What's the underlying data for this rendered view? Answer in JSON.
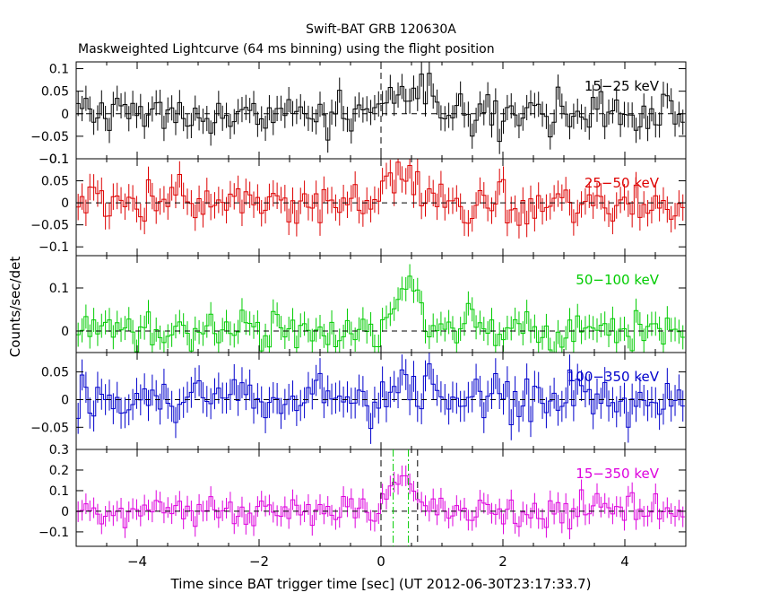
{
  "title": "Swift-BAT GRB 120630A",
  "subtitle": "Maskweighted Lightcurve (64 ms binning) using the flight position",
  "xlabel": "Time since BAT trigger time [sec] (UT 2012-06-30T23:17:33.7)",
  "ylabel": "Counts/sec/det",
  "colors": {
    "axis": "#000000",
    "dashed": "#000000",
    "green_marker": "#00cc00"
  },
  "chart_data": {
    "type": "line",
    "style": "histogram-step with error bars",
    "x": {
      "range": [
        -5,
        5
      ],
      "ticks": [
        -4,
        -2,
        0,
        2,
        4
      ],
      "tick_labels": [
        "−4",
        "−2",
        "0",
        "2",
        "4"
      ],
      "bin_width": 0.064
    },
    "grid": false,
    "panels": [
      {
        "label": "15−25 keV",
        "color": "#000000",
        "ylim": [
          -0.1,
          0.115
        ],
        "yticks": [
          -0.1,
          -0.05,
          0,
          0.05,
          0.1
        ],
        "ytick_labels": [
          "−0.1",
          "−0.05",
          "0",
          "0.05",
          "0.1"
        ],
        "noise_sigma": 0.022,
        "err": 0.028,
        "pulse": {
          "amp": 0.045,
          "center": 0.4,
          "width": 0.3
        }
      },
      {
        "label": "25−50 keV",
        "color": "#dd0000",
        "ylim": [
          -0.12,
          0.1
        ],
        "yticks": [
          -0.1,
          -0.05,
          0,
          0.05,
          0.1
        ],
        "ytick_labels": [
          "−0.1",
          "−0.05",
          "0",
          "0.05",
          "0.1"
        ],
        "noise_sigma": 0.025,
        "err": 0.03,
        "pulse": {
          "amp": 0.05,
          "center": 0.4,
          "width": 0.3
        }
      },
      {
        "label": "50−100 keV",
        "color": "#00cc00",
        "ylim": [
          -0.05,
          0.175
        ],
        "yticks": [
          0,
          0.1
        ],
        "ytick_labels": [
          "0",
          "0.1"
        ],
        "noise_sigma": 0.022,
        "err": 0.028,
        "pulse": {
          "amp": 0.12,
          "center": 0.4,
          "width": 0.15
        }
      },
      {
        "label": "100−350 keV",
        "color": "#0000cc",
        "ylim": [
          -0.09,
          0.085
        ],
        "yticks": [
          -0.05,
          0,
          0.05
        ],
        "ytick_labels": [
          "−0.05",
          "0",
          "0.05"
        ],
        "noise_sigma": 0.022,
        "err": 0.028,
        "pulse": {
          "amp": 0.02,
          "center": 0.35,
          "width": 0.25
        }
      },
      {
        "label": "15−350 keV",
        "color": "#dd00dd",
        "ylim": [
          -0.17,
          0.3
        ],
        "yticks": [
          -0.1,
          0,
          0.1,
          0.2,
          0.3
        ],
        "ytick_labels": [
          "−0.1",
          "0",
          "0.1",
          "0.2",
          "0.3"
        ],
        "noise_sigma": 0.04,
        "err": 0.05,
        "pulse": {
          "amp": 0.2,
          "center": 0.38,
          "width": 0.16
        }
      }
    ],
    "markers": {
      "black_dashed": [
        0.0,
        0.6
      ],
      "green_dashdot": [
        0.2,
        0.45
      ]
    }
  }
}
